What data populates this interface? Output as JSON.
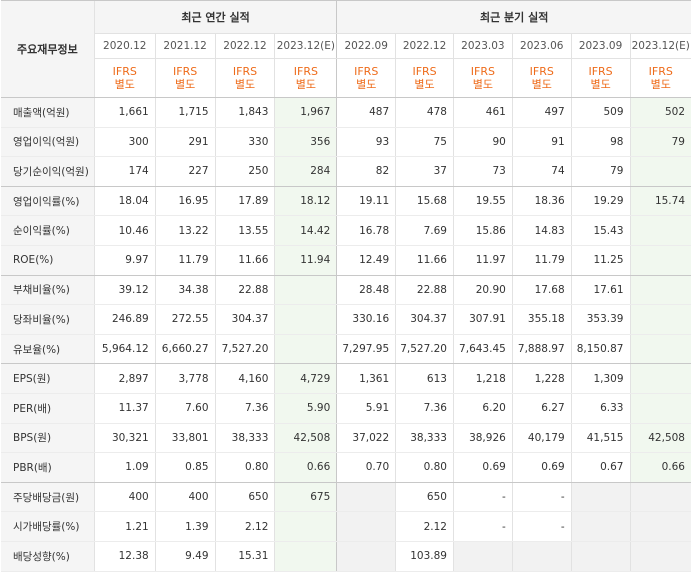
{
  "header": {
    "row_label": "주요재무정보",
    "annual_title": "최근 연간 실적",
    "quarter_title": "최근 분기 실적",
    "annual_periods": [
      "2020.12",
      "2021.12",
      "2022.12",
      "2023.12(E)"
    ],
    "quarter_periods": [
      "2022.09",
      "2022.12",
      "2023.03",
      "2023.06",
      "2023.09",
      "2023.12(E)"
    ],
    "basis_top": "IFRS",
    "basis_bottom": "별도"
  },
  "colors": {
    "ifrs_text": "#ee6b1a",
    "estimate_bg": "#f1f8ef",
    "label_bg": "#f5f5f5",
    "empty_bg": "#f2f2f2"
  },
  "rows": [
    {
      "label": "매출액(억원)",
      "annual": [
        "1,661",
        "1,715",
        "1,843",
        "1,967"
      ],
      "quarter": [
        "487",
        "478",
        "461",
        "497",
        "509",
        "502"
      ]
    },
    {
      "label": "영업이익(억원)",
      "annual": [
        "300",
        "291",
        "330",
        "356"
      ],
      "quarter": [
        "93",
        "75",
        "90",
        "91",
        "98",
        "79"
      ]
    },
    {
      "label": "당기순이익(억원)",
      "annual": [
        "174",
        "227",
        "250",
        "284"
      ],
      "quarter": [
        "82",
        "37",
        "73",
        "74",
        "79",
        ""
      ]
    },
    {
      "label": "영업이익률(%)",
      "annual": [
        "18.04",
        "16.95",
        "17.89",
        "18.12"
      ],
      "quarter": [
        "19.11",
        "15.68",
        "19.55",
        "18.36",
        "19.29",
        "15.74"
      ]
    },
    {
      "label": "순이익률(%)",
      "annual": [
        "10.46",
        "13.22",
        "13.55",
        "14.42"
      ],
      "quarter": [
        "16.78",
        "7.69",
        "15.86",
        "14.83",
        "15.43",
        ""
      ]
    },
    {
      "label": "ROE(%)",
      "annual": [
        "9.97",
        "11.79",
        "11.66",
        "11.94"
      ],
      "quarter": [
        "12.49",
        "11.66",
        "11.97",
        "11.79",
        "11.25",
        ""
      ]
    },
    {
      "label": "부채비율(%)",
      "annual": [
        "39.12",
        "34.38",
        "22.88",
        ""
      ],
      "quarter": [
        "28.48",
        "22.88",
        "20.90",
        "17.68",
        "17.61",
        ""
      ]
    },
    {
      "label": "당좌비율(%)",
      "annual": [
        "246.89",
        "272.55",
        "304.37",
        ""
      ],
      "quarter": [
        "330.16",
        "304.37",
        "307.91",
        "355.18",
        "353.39",
        ""
      ]
    },
    {
      "label": "유보율(%)",
      "annual": [
        "5,964.12",
        "6,660.27",
        "7,527.20",
        ""
      ],
      "quarter": [
        "7,297.95",
        "7,527.20",
        "7,643.45",
        "7,888.97",
        "8,150.87",
        ""
      ]
    },
    {
      "label": "EPS(원)",
      "annual": [
        "2,897",
        "3,778",
        "4,160",
        "4,729"
      ],
      "quarter": [
        "1,361",
        "613",
        "1,218",
        "1,228",
        "1,309",
        ""
      ]
    },
    {
      "label": "PER(배)",
      "annual": [
        "11.37",
        "7.60",
        "7.36",
        "5.90"
      ],
      "quarter": [
        "5.91",
        "7.36",
        "6.20",
        "6.27",
        "6.33",
        ""
      ]
    },
    {
      "label": "BPS(원)",
      "annual": [
        "30,321",
        "33,801",
        "38,333",
        "42,508"
      ],
      "quarter": [
        "37,022",
        "38,333",
        "38,926",
        "40,179",
        "41,515",
        "42,508"
      ]
    },
    {
      "label": "PBR(배)",
      "annual": [
        "1.09",
        "0.85",
        "0.80",
        "0.66"
      ],
      "quarter": [
        "0.70",
        "0.80",
        "0.69",
        "0.69",
        "0.67",
        "0.66"
      ]
    },
    {
      "label": "주당배당금(원)",
      "annual": [
        "400",
        "400",
        "650",
        "675"
      ],
      "quarter": [
        "",
        "650",
        "-",
        "-",
        "",
        ""
      ]
    },
    {
      "label": "시가배당률(%)",
      "annual": [
        "1.21",
        "1.39",
        "2.12",
        ""
      ],
      "quarter": [
        "",
        "2.12",
        "-",
        "-",
        "",
        ""
      ]
    },
    {
      "label": "배당성향(%)",
      "annual": [
        "12.38",
        "9.49",
        "15.31",
        ""
      ],
      "quarter": [
        "",
        "103.89",
        "",
        "",
        "",
        ""
      ]
    }
  ]
}
